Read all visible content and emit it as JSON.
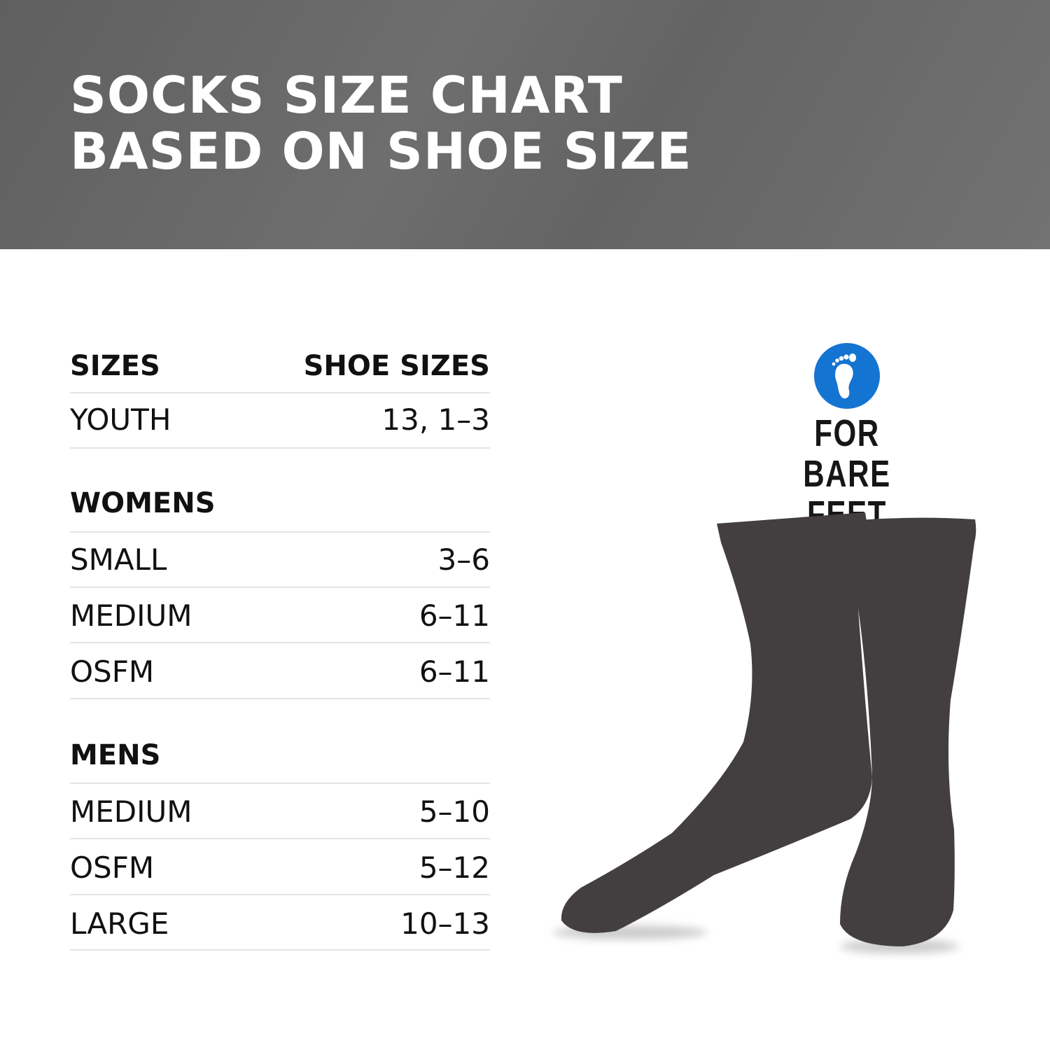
{
  "header": {
    "title_line1": "SOCKS SIZE CHART",
    "title_line2": "BASED ON SHOE SIZE"
  },
  "table": {
    "columns": [
      "SIZES",
      "SHOE SIZES"
    ],
    "youth": {
      "label": "YOUTH",
      "value": "13, 1–3"
    },
    "womens": {
      "group": "WOMENS",
      "rows": [
        {
          "label": "SMALL",
          "value": "3–6"
        },
        {
          "label": "MEDIUM",
          "value": "6–11"
        },
        {
          "label": "OSFM",
          "value": "6–11"
        }
      ]
    },
    "mens": {
      "group": "MENS",
      "rows": [
        {
          "label": "MEDIUM",
          "value": "5–10"
        },
        {
          "label": "OSFM",
          "value": "5–12"
        },
        {
          "label": "LARGE",
          "value": "10–13"
        }
      ]
    }
  },
  "badge": {
    "text": "FOR BARE FEET",
    "icon": "bare-foot-icon",
    "color": "#1474d1"
  },
  "colors": {
    "header": "#686868",
    "sock": "#433f41",
    "divider": "#e4e4e4"
  }
}
